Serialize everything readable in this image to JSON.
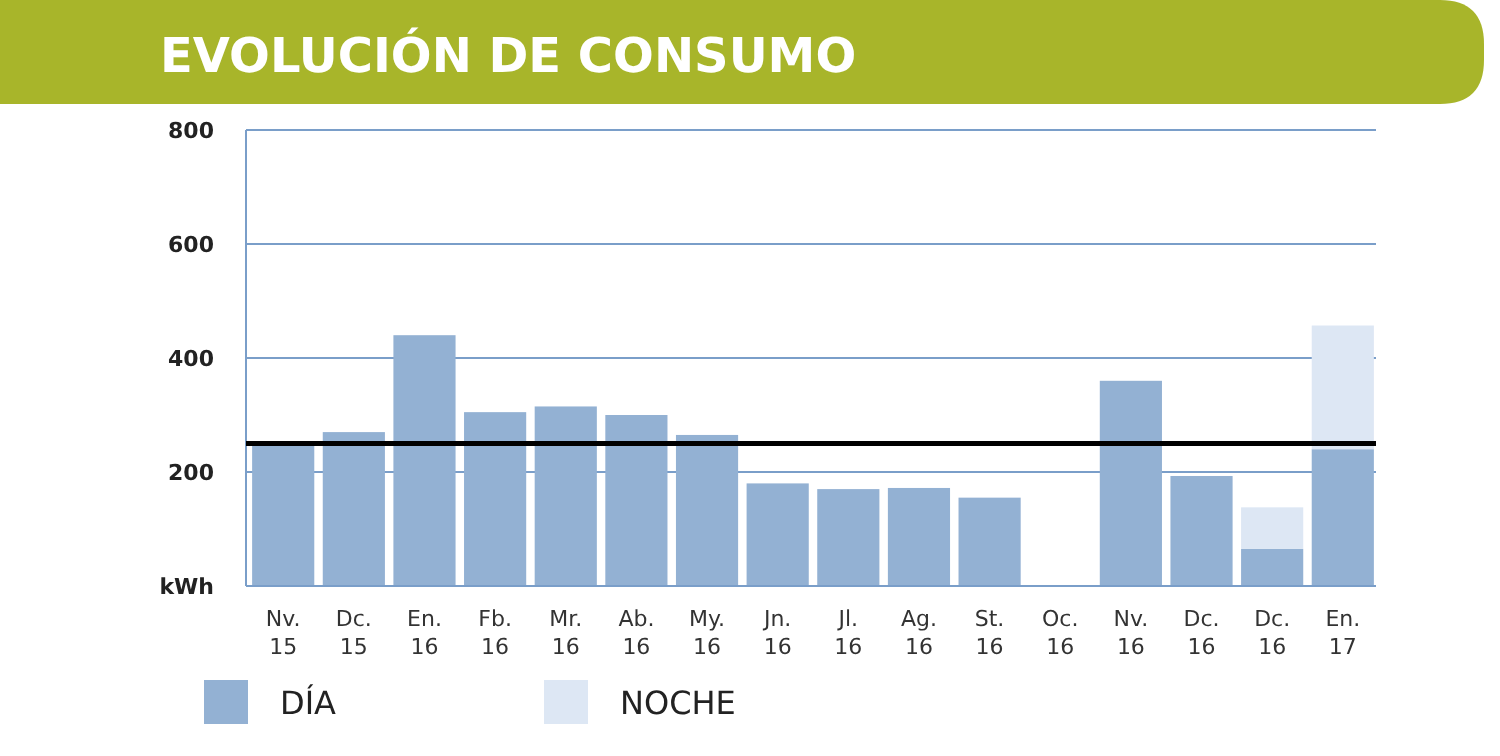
{
  "chart_data": {
    "type": "bar",
    "title": "EVOLUCIÓN DE CONSUMO",
    "stacked": true,
    "categories": [
      "Nv. 15",
      "Dc. 15",
      "En. 16",
      "Fb. 16",
      "Mr. 16",
      "Ab. 16",
      "My. 16",
      "Jn. 16",
      "Jl. 16",
      "Ag. 16",
      "St. 16",
      "Oc. 16",
      "Nv. 16",
      "Dc. 16",
      "Dc. 16",
      "En. 17"
    ],
    "series": [
      {
        "name": "DÍA",
        "color": "#93b1d3",
        "values": [
          250,
          270,
          440,
          305,
          315,
          300,
          265,
          180,
          170,
          172,
          155,
          null,
          360,
          193,
          65,
          240
        ]
      },
      {
        "name": "NOCHE",
        "color": "#dde7f4",
        "values": [
          null,
          null,
          null,
          null,
          null,
          null,
          null,
          null,
          null,
          null,
          null,
          null,
          null,
          null,
          73,
          217
        ]
      }
    ],
    "ylim": [
      0,
      800
    ],
    "yticks": [
      {
        "value": 0,
        "label": "kWh"
      },
      200,
      400,
      600,
      800
    ],
    "grid": "y",
    "legend": "bottom",
    "ref_lines": [
      {
        "axis": "y",
        "value": 250,
        "color": "#000000"
      }
    ]
  }
}
